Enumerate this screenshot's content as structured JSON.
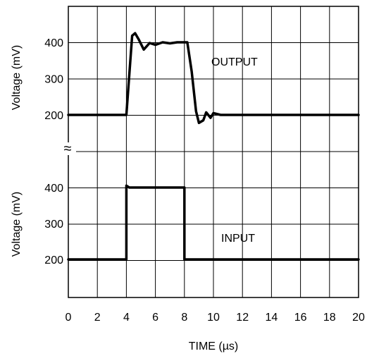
{
  "chart_data": {
    "type": "line",
    "xlabel": "TIME (µs)",
    "x_ticks": [
      "0",
      "2",
      "4",
      "6",
      "8",
      "10",
      "12",
      "14",
      "16",
      "18",
      "20"
    ],
    "xlim": [
      0,
      20
    ],
    "grid": true,
    "panels": [
      {
        "name": "output",
        "ylabel": "Voltage (mV)",
        "y_ticks": [
          "200",
          "300",
          "400"
        ],
        "ylim": [
          120,
          500
        ],
        "annotation": "OUTPUT",
        "series": [
          {
            "x": [
              0,
              4.0,
              4.4,
              4.6,
              4.85,
              5.2,
              5.6,
              6.0,
              6.5,
              7.0,
              7.5,
              8.0,
              8.2,
              8.5,
              8.8,
              9.0,
              9.3,
              9.5,
              9.8,
              10.0,
              10.2,
              10.5,
              20
            ],
            "values": [
              200,
              200,
              418,
              425,
              408,
              380,
              398,
              393,
              400,
              397,
              400,
              400,
              400,
              320,
              210,
              178,
              185,
              207,
              192,
              205,
              203,
              200,
              200
            ]
          }
        ]
      },
      {
        "name": "input",
        "ylabel": "Voltage (mV)",
        "y_ticks": [
          "200",
          "300",
          "400"
        ],
        "ylim": [
          110,
          500
        ],
        "annotation": "INPUT",
        "series": [
          {
            "x": [
              0,
              4.0,
              4.0,
              4.2,
              8.0,
              8.0,
              20
            ],
            "values": [
              200,
              200,
              405,
              400,
              400,
              200,
              200
            ]
          }
        ]
      }
    ],
    "break_symbol": "≈"
  }
}
